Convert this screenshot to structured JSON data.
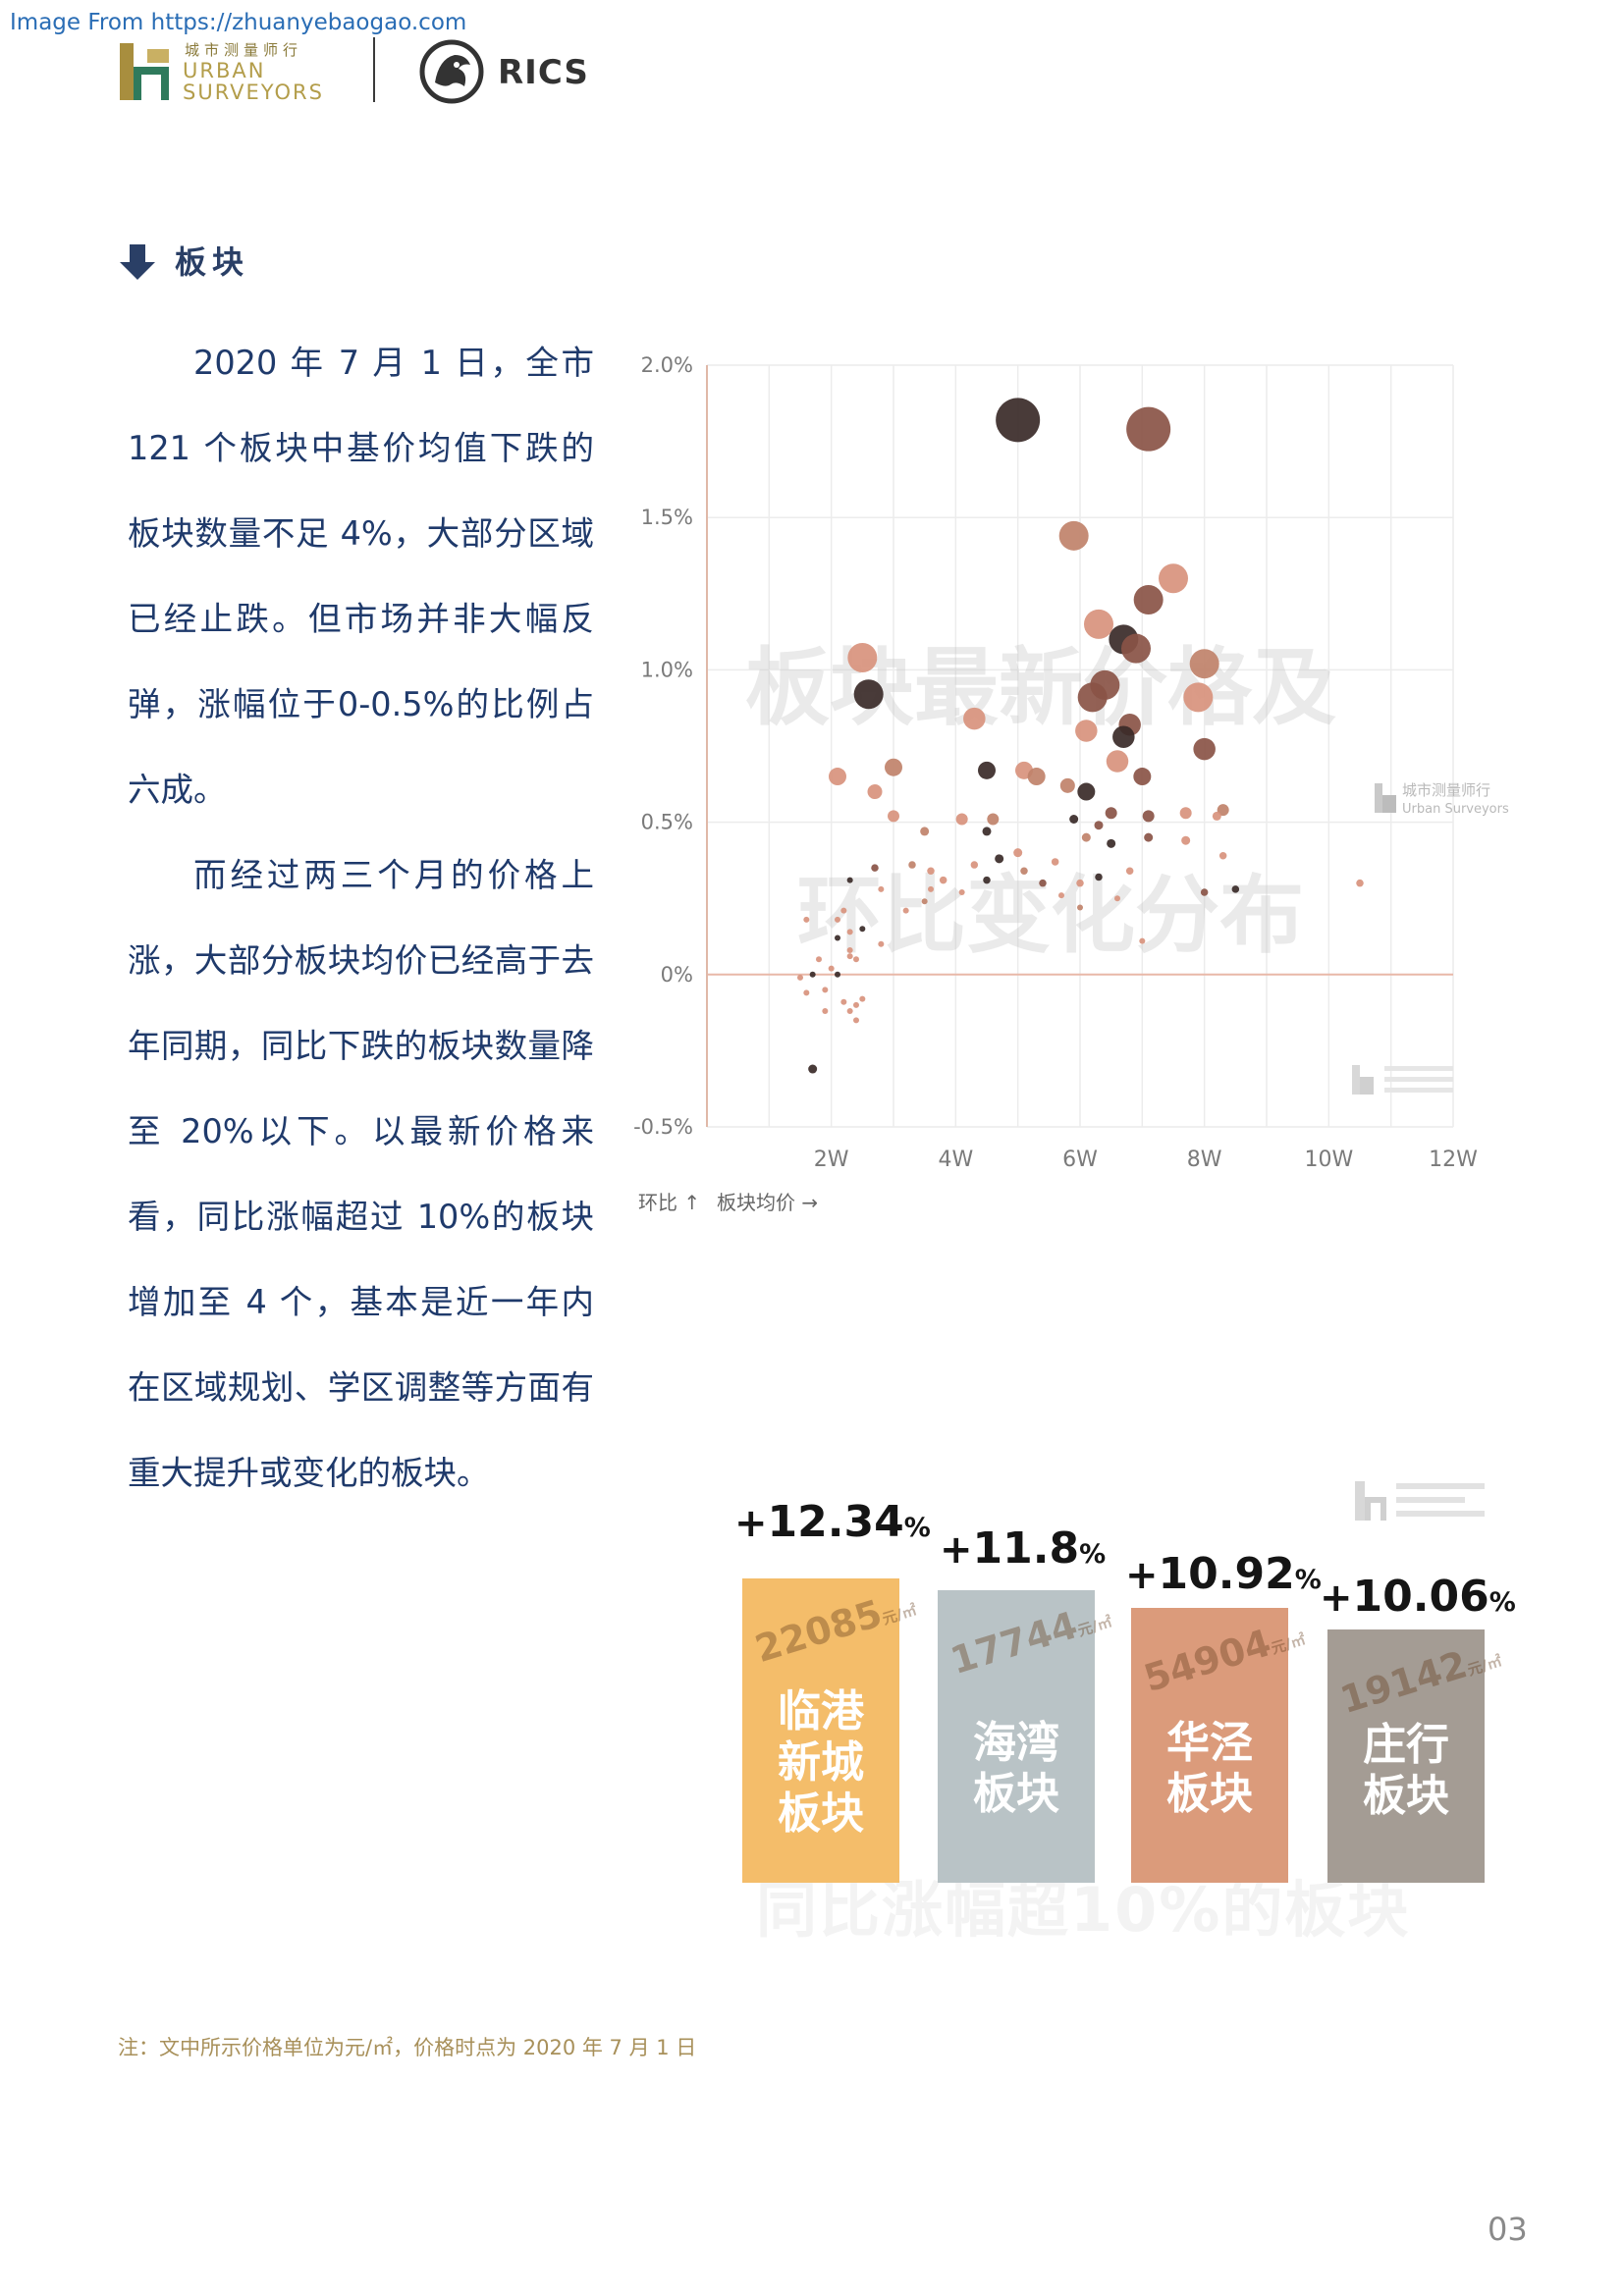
{
  "source_url": "Image From https://zhuanyebaogao.com",
  "header": {
    "left_logo_cn": "城市测量师行",
    "left_logo_en_line1": "URBAN",
    "left_logo_en_line2": "SURVEYORS",
    "right_logo_text": "RICS"
  },
  "section": {
    "title": "板块"
  },
  "body": {
    "paragraph1": "2020 年 7 月 1 日，全市 121 个板块中基价均值下跌的板块数量不足 4%，大部分区域已经止跌。但市场并非大幅反弹，涨幅位于0-0.5%的比例占六成。",
    "paragraph2": "而经过两三个月的价格上涨，大部分板块均价已经高于去年同期，同比下跌的板块数量降至 20%以下。以最新价格来看，同比涨幅超过 10%的板块增加至 4 个，基本是近一年内在区域规划、学区调整等方面有重大提升或变化的板块。"
  },
  "chart_data": [
    {
      "type": "scatter",
      "watermark_line1": "板块最新价格及",
      "watermark_line2": "环比变化分布",
      "logo_cn": "城市测量师行",
      "logo_en": "Urban Surveyors",
      "y_tick_labels": [
        "2.0%",
        "1.5%",
        "1.0%",
        "0.5%",
        "0%",
        "-0.5%"
      ],
      "x_tick_labels": [
        "2W",
        "4W",
        "6W",
        "8W",
        "10W",
        "12W"
      ],
      "xlim": [
        0,
        12
      ],
      "ylim": [
        -0.5,
        2.0
      ],
      "grid": true,
      "axis_caption_y": "环比 ↑",
      "axis_caption_x": "板块均价 →",
      "colors": {
        "dark": "#3a2a28",
        "brown": "#8a5446",
        "copper": "#c0826a",
        "salmon": "#d8937d",
        "light": "#e8a88f",
        "zero_line": "#e8b8a8"
      },
      "points": [
        {
          "x": 5.0,
          "y": 1.82,
          "s": 3,
          "c": "dark"
        },
        {
          "x": 7.1,
          "y": 1.79,
          "s": 3,
          "c": "brown"
        },
        {
          "x": 5.9,
          "y": 1.44,
          "s": 2,
          "c": "copper"
        },
        {
          "x": 7.5,
          "y": 1.3,
          "s": 2,
          "c": "salmon"
        },
        {
          "x": 7.1,
          "y": 1.23,
          "s": 2,
          "c": "brown"
        },
        {
          "x": 6.3,
          "y": 1.15,
          "s": 2,
          "c": "salmon"
        },
        {
          "x": 6.7,
          "y": 1.1,
          "s": 2,
          "c": "dark"
        },
        {
          "x": 6.9,
          "y": 1.07,
          "s": 2,
          "c": "brown"
        },
        {
          "x": 2.5,
          "y": 1.04,
          "s": 2,
          "c": "salmon"
        },
        {
          "x": 8.0,
          "y": 1.02,
          "s": 2,
          "c": "copper"
        },
        {
          "x": 6.4,
          "y": 0.95,
          "s": 2,
          "c": "brown"
        },
        {
          "x": 6.2,
          "y": 0.91,
          "s": 2,
          "c": "brown"
        },
        {
          "x": 7.9,
          "y": 0.91,
          "s": 2,
          "c": "salmon"
        },
        {
          "x": 2.6,
          "y": 0.92,
          "s": 2,
          "c": "dark"
        },
        {
          "x": 4.3,
          "y": 0.84,
          "s": 1.5,
          "c": "salmon"
        },
        {
          "x": 6.8,
          "y": 0.82,
          "s": 1.5,
          "c": "brown"
        },
        {
          "x": 6.1,
          "y": 0.8,
          "s": 1.5,
          "c": "salmon"
        },
        {
          "x": 6.7,
          "y": 0.78,
          "s": 1.5,
          "c": "dark"
        },
        {
          "x": 8.0,
          "y": 0.74,
          "s": 1.5,
          "c": "brown"
        },
        {
          "x": 6.6,
          "y": 0.7,
          "s": 1.5,
          "c": "salmon"
        },
        {
          "x": 3.0,
          "y": 0.68,
          "s": 1.2,
          "c": "copper"
        },
        {
          "x": 2.1,
          "y": 0.65,
          "s": 1.2,
          "c": "salmon"
        },
        {
          "x": 4.5,
          "y": 0.67,
          "s": 1.2,
          "c": "dark"
        },
        {
          "x": 5.1,
          "y": 0.67,
          "s": 1.2,
          "c": "salmon"
        },
        {
          "x": 5.3,
          "y": 0.65,
          "s": 1.2,
          "c": "copper"
        },
        {
          "x": 5.8,
          "y": 0.62,
          "s": 1,
          "c": "copper"
        },
        {
          "x": 7.0,
          "y": 0.65,
          "s": 1.2,
          "c": "brown"
        },
        {
          "x": 6.1,
          "y": 0.6,
          "s": 1.2,
          "c": "dark"
        },
        {
          "x": 2.7,
          "y": 0.6,
          "s": 1,
          "c": "salmon"
        },
        {
          "x": 3.0,
          "y": 0.52,
          "s": 0.8,
          "c": "salmon"
        },
        {
          "x": 4.1,
          "y": 0.51,
          "s": 0.8,
          "c": "salmon"
        },
        {
          "x": 4.6,
          "y": 0.51,
          "s": 0.8,
          "c": "copper"
        },
        {
          "x": 6.5,
          "y": 0.53,
          "s": 0.8,
          "c": "brown"
        },
        {
          "x": 7.7,
          "y": 0.53,
          "s": 0.8,
          "c": "salmon"
        },
        {
          "x": 8.3,
          "y": 0.54,
          "s": 0.8,
          "c": "copper"
        },
        {
          "x": 7.1,
          "y": 0.52,
          "s": 0.8,
          "c": "brown"
        },
        {
          "x": 3.5,
          "y": 0.47,
          "s": 0.6,
          "c": "copper"
        },
        {
          "x": 4.5,
          "y": 0.47,
          "s": 0.6,
          "c": "dark"
        },
        {
          "x": 5.9,
          "y": 0.51,
          "s": 0.6,
          "c": "dark"
        },
        {
          "x": 6.1,
          "y": 0.45,
          "s": 0.6,
          "c": "copper"
        },
        {
          "x": 6.3,
          "y": 0.49,
          "s": 0.6,
          "c": "brown"
        },
        {
          "x": 6.5,
          "y": 0.43,
          "s": 0.6,
          "c": "dark"
        },
        {
          "x": 7.7,
          "y": 0.44,
          "s": 0.6,
          "c": "salmon"
        },
        {
          "x": 8.2,
          "y": 0.52,
          "s": 0.6,
          "c": "salmon"
        },
        {
          "x": 7.1,
          "y": 0.45,
          "s": 0.6,
          "c": "brown"
        },
        {
          "x": 4.7,
          "y": 0.38,
          "s": 0.6,
          "c": "dark"
        },
        {
          "x": 5.0,
          "y": 0.4,
          "s": 0.6,
          "c": "salmon"
        },
        {
          "x": 4.3,
          "y": 0.36,
          "s": 0.5,
          "c": "salmon"
        },
        {
          "x": 3.3,
          "y": 0.36,
          "s": 0.5,
          "c": "copper"
        },
        {
          "x": 2.7,
          "y": 0.35,
          "s": 0.5,
          "c": "brown"
        },
        {
          "x": 3.6,
          "y": 0.34,
          "s": 0.5,
          "c": "salmon"
        },
        {
          "x": 3.8,
          "y": 0.31,
          "s": 0.5,
          "c": "salmon"
        },
        {
          "x": 4.5,
          "y": 0.31,
          "s": 0.5,
          "c": "dark"
        },
        {
          "x": 5.1,
          "y": 0.34,
          "s": 0.5,
          "c": "copper"
        },
        {
          "x": 5.6,
          "y": 0.37,
          "s": 0.5,
          "c": "salmon"
        },
        {
          "x": 5.4,
          "y": 0.3,
          "s": 0.5,
          "c": "brown"
        },
        {
          "x": 6.0,
          "y": 0.3,
          "s": 0.5,
          "c": "salmon"
        },
        {
          "x": 6.8,
          "y": 0.34,
          "s": 0.5,
          "c": "salmon"
        },
        {
          "x": 6.3,
          "y": 0.32,
          "s": 0.5,
          "c": "dark"
        },
        {
          "x": 8.3,
          "y": 0.39,
          "s": 0.5,
          "c": "salmon"
        },
        {
          "x": 8.5,
          "y": 0.28,
          "s": 0.5,
          "c": "dark"
        },
        {
          "x": 10.5,
          "y": 0.3,
          "s": 0.5,
          "c": "salmon"
        },
        {
          "x": 8.0,
          "y": 0.27,
          "s": 0.5,
          "c": "brown"
        },
        {
          "x": 2.3,
          "y": 0.31,
          "s": 0.4,
          "c": "dark"
        },
        {
          "x": 2.8,
          "y": 0.28,
          "s": 0.4,
          "c": "salmon"
        },
        {
          "x": 3.6,
          "y": 0.28,
          "s": 0.4,
          "c": "salmon"
        },
        {
          "x": 4.1,
          "y": 0.27,
          "s": 0.4,
          "c": "salmon"
        },
        {
          "x": 3.5,
          "y": 0.24,
          "s": 0.4,
          "c": "copper"
        },
        {
          "x": 5.7,
          "y": 0.26,
          "s": 0.4,
          "c": "salmon"
        },
        {
          "x": 6.0,
          "y": 0.22,
          "s": 0.4,
          "c": "copper"
        },
        {
          "x": 6.6,
          "y": 0.25,
          "s": 0.4,
          "c": "salmon"
        },
        {
          "x": 2.2,
          "y": 0.21,
          "s": 0.4,
          "c": "salmon"
        },
        {
          "x": 3.2,
          "y": 0.21,
          "s": 0.4,
          "c": "salmon"
        },
        {
          "x": 2.5,
          "y": 0.15,
          "s": 0.4,
          "c": "dark"
        },
        {
          "x": 1.6,
          "y": 0.18,
          "s": 0.4,
          "c": "salmon"
        },
        {
          "x": 2.1,
          "y": 0.12,
          "s": 0.3,
          "c": "dark"
        },
        {
          "x": 2.3,
          "y": 0.14,
          "s": 0.3,
          "c": "salmon"
        },
        {
          "x": 7.0,
          "y": 0.11,
          "s": 0.3,
          "c": "salmon"
        },
        {
          "x": 2.3,
          "y": 0.06,
          "s": 0.3,
          "c": "salmon"
        },
        {
          "x": 1.8,
          "y": 0.05,
          "s": 0.3,
          "c": "salmon"
        },
        {
          "x": 1.7,
          "y": 0.0,
          "s": 0.3,
          "c": "dark"
        },
        {
          "x": 2.1,
          "y": 0.0,
          "s": 0.3,
          "c": "dark"
        },
        {
          "x": 1.9,
          "y": -0.05,
          "s": 0.3,
          "c": "salmon"
        },
        {
          "x": 2.2,
          "y": -0.09,
          "s": 0.3,
          "c": "salmon"
        },
        {
          "x": 2.4,
          "y": -0.1,
          "s": 0.3,
          "c": "salmon"
        },
        {
          "x": 2.5,
          "y": -0.08,
          "s": 0.3,
          "c": "salmon"
        },
        {
          "x": 2.3,
          "y": -0.12,
          "s": 0.3,
          "c": "salmon"
        },
        {
          "x": 2.4,
          "y": 0.05,
          "s": 0.3,
          "c": "salmon"
        },
        {
          "x": 1.6,
          "y": -0.06,
          "s": 0.3,
          "c": "salmon"
        },
        {
          "x": 2.0,
          "y": 0.02,
          "s": 0.3,
          "c": "salmon"
        },
        {
          "x": 2.8,
          "y": 0.1,
          "s": 0.3,
          "c": "salmon"
        },
        {
          "x": 1.5,
          "y": -0.01,
          "s": 0.3,
          "c": "salmon"
        },
        {
          "x": 1.9,
          "y": -0.12,
          "s": 0.3,
          "c": "salmon"
        },
        {
          "x": 2.3,
          "y": 0.08,
          "s": 0.3,
          "c": "salmon"
        },
        {
          "x": 2.1,
          "y": 0.18,
          "s": 0.3,
          "c": "salmon"
        },
        {
          "x": 2.4,
          "y": -0.15,
          "s": 0.3,
          "c": "salmon"
        },
        {
          "x": 1.7,
          "y": -0.31,
          "s": 0.6,
          "c": "dark"
        }
      ]
    },
    {
      "type": "bar",
      "watermark": "同比涨幅超10%的板块",
      "bars": [
        {
          "name_line1": "临港",
          "name_line2": "新城",
          "name_line3": "板块",
          "price": "22085",
          "price_unit": "元/㎡",
          "change": "12.34",
          "sign": "+",
          "unit": "%",
          "color": "#f4bd6a"
        },
        {
          "name_line1": "",
          "name_line2": "海湾",
          "name_line3": "板块",
          "price": "17744",
          "price_unit": "元/㎡",
          "change": "11.8",
          "sign": "+",
          "unit": "%",
          "color": "#b9c3c6"
        },
        {
          "name_line1": "",
          "name_line2": "华泾",
          "name_line3": "板块",
          "price": "54904",
          "price_unit": "元/㎡",
          "change": "10.92",
          "sign": "+",
          "unit": "%",
          "color": "#db9b7b"
        },
        {
          "name_line1": "",
          "name_line2": "庄行",
          "name_line3": "板块",
          "price": "19142",
          "price_unit": "元/㎡",
          "change": "10.06",
          "sign": "+",
          "unit": "%",
          "color": "#a49c94"
        }
      ]
    }
  ],
  "footnote": "注：文中所示价格单位为元/㎡，价格时点为 2020 年 7 月 1 日",
  "page_number": "03"
}
